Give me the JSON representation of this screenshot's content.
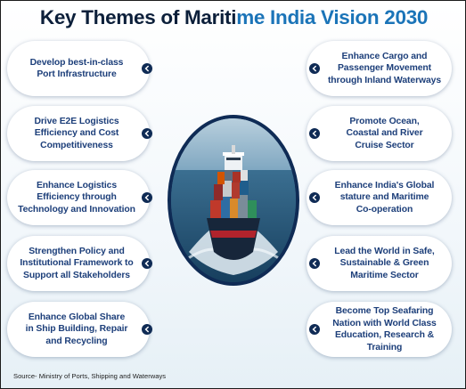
{
  "title": {
    "part1": "Key Themes of Mariti",
    "part2": "me India Vision 2030"
  },
  "left_themes": [
    "Develop best-in-class\nPort Infrastructure",
    "Drive E2E Logistics\nEfficiency and Cost\nCompetitiveness",
    "Enhance Logistics\nEfficiency through\nTechnology and Innovation",
    "Strengthen Policy and\nInstitutional Framework to\nSupport all Stakeholders",
    "Enhance Global Share\nin Ship Building, Repair\nand Recycling"
  ],
  "right_themes": [
    "Enhance Cargo and\nPassenger Movement\nthrough Inland Waterways",
    "Promote Ocean,\nCoastal and River\nCruise Sector",
    "Enhance India's Global\nstature and Maritime\nCo-operation",
    "Lead the World in Safe,\nSustainable & Green\nMaritime Sector",
    "Become Top Seafaring\nNation with World Class\nEducation, Research & Training"
  ],
  "center_image": {
    "icon": "container-ship-image"
  },
  "source": "Source- Ministry of Ports, Shipping and Waterways",
  "colors": {
    "title_dark": "#0c1f3a",
    "title_accent": "#1b74b8",
    "card_text": "#1d3f7a",
    "chevron": "#0f2b55"
  }
}
